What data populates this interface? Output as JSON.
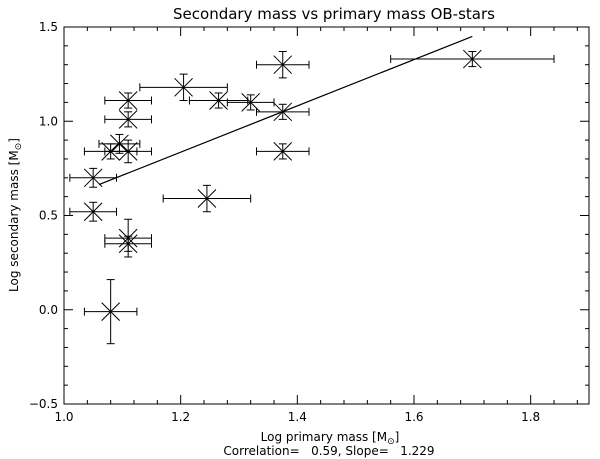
{
  "chart_data": {
    "type": "scatter",
    "title": "Secondary mass vs primary mass OB-stars",
    "xlabel": "Log primary mass [M",
    "ylabel": "Log secondary mass [M",
    "sun_symbol": "⊙",
    "label_close": "]",
    "xlim": [
      1.0,
      1.9
    ],
    "ylim": [
      -0.5,
      1.5
    ],
    "xticks": [
      1.0,
      1.2,
      1.4,
      1.6,
      1.8
    ],
    "yticks": [
      -0.5,
      0.0,
      0.5,
      1.0,
      1.5
    ],
    "xtick_labels": [
      "1.0",
      "1.2",
      "1.4",
      "1.6",
      "1.8"
    ],
    "ytick_labels": [
      "−0.5",
      "0.0",
      "0.5",
      "1.0",
      "1.5"
    ],
    "points": [
      {
        "x": 1.05,
        "y": 0.7,
        "xerr": 0.04,
        "yerr": 0.05
      },
      {
        "x": 1.05,
        "y": 0.52,
        "xerr": 0.04,
        "yerr": 0.05
      },
      {
        "x": 1.08,
        "y": -0.01,
        "xerr": 0.045,
        "yerr": 0.17
      },
      {
        "x": 1.08,
        "y": 0.84,
        "xerr": 0.045,
        "yerr": 0.04
      },
      {
        "x": 1.095,
        "y": 0.88,
        "xerr": 0.035,
        "yerr": 0.05
      },
      {
        "x": 1.11,
        "y": 1.11,
        "xerr": 0.04,
        "yerr": 0.04
      },
      {
        "x": 1.11,
        "y": 1.01,
        "xerr": 0.04,
        "yerr": 0.04
      },
      {
        "x": 1.11,
        "y": 0.84,
        "xerr": 0.04,
        "yerr": 0.06
      },
      {
        "x": 1.11,
        "y": 0.38,
        "xerr": 0.04,
        "yerr": 0.1
      },
      {
        "x": 1.11,
        "y": 0.35,
        "xerr": 0.04,
        "yerr": 0.04
      },
      {
        "x": 1.205,
        "y": 1.18,
        "xerr": 0.075,
        "yerr": 0.07
      },
      {
        "x": 1.245,
        "y": 0.59,
        "xerr": 0.075,
        "yerr": 0.07
      },
      {
        "x": 1.265,
        "y": 1.11,
        "xerr": 0.05,
        "yerr": 0.04
      },
      {
        "x": 1.32,
        "y": 1.1,
        "xerr": 0.04,
        "yerr": 0.04
      },
      {
        "x": 1.375,
        "y": 1.3,
        "xerr": 0.045,
        "yerr": 0.07
      },
      {
        "x": 1.375,
        "y": 1.05,
        "xerr": 0.045,
        "yerr": 0.04
      },
      {
        "x": 1.375,
        "y": 0.84,
        "xerr": 0.045,
        "yerr": 0.04
      },
      {
        "x": 1.7,
        "y": 1.33,
        "xerr": 0.14,
        "yerr": 0.04
      }
    ],
    "fit_line": {
      "x": [
        1.06,
        1.7
      ],
      "y": [
        0.664,
        1.45
      ]
    },
    "correlation": "0.59",
    "slope": "1.229",
    "footer_text": "Correlation=   0.59, Slope=   1.229"
  }
}
